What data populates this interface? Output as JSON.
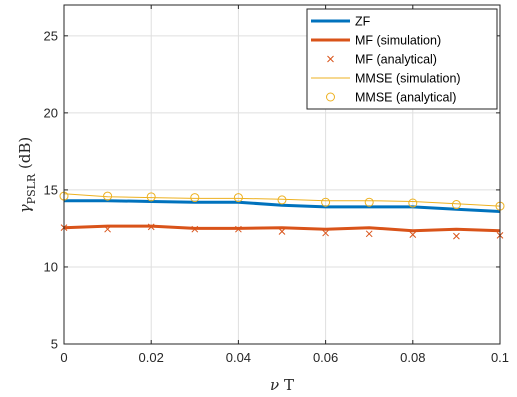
{
  "chart_data": {
    "type": "line",
    "x": [
      0,
      0.01,
      0.02,
      0.03,
      0.04,
      0.05,
      0.06,
      0.07,
      0.08,
      0.09,
      0.1
    ],
    "xlim": [
      0,
      0.1
    ],
    "ylim": [
      5,
      27
    ],
    "xticks": [
      0,
      0.02,
      0.04,
      0.06,
      0.08,
      0.1
    ],
    "xtick_labels": [
      "0",
      "0.02",
      "0.04",
      "0.06",
      "0.08",
      "0.1"
    ],
    "yticks": [
      5,
      10,
      15,
      20,
      25
    ],
    "ytick_labels": [
      "5",
      "10",
      "15",
      "20",
      "25"
    ],
    "xlabel_symbol": "ν",
    "xlabel_rest": " T",
    "ylabel_symbol": "γ",
    "ylabel_sub": "PSLR",
    "ylabel_rest": " (dB)",
    "grid": true,
    "legend_position": "top-right",
    "series": [
      {
        "name": "ZF",
        "style": "line",
        "color": "#0072BD",
        "width": 3,
        "values": [
          14.3,
          14.3,
          14.25,
          14.2,
          14.2,
          14.0,
          13.9,
          13.9,
          13.9,
          13.75,
          13.6
        ]
      },
      {
        "name": "MF (simulation)",
        "style": "line",
        "color": "#D95319",
        "width": 3,
        "values": [
          12.55,
          12.65,
          12.65,
          12.5,
          12.5,
          12.55,
          12.45,
          12.55,
          12.35,
          12.45,
          12.35
        ]
      },
      {
        "name": "MF (analytical)",
        "style": "x",
        "color": "#D95319",
        "values": [
          12.55,
          12.45,
          12.6,
          12.45,
          12.45,
          12.3,
          12.2,
          12.15,
          12.1,
          12.0,
          12.05
        ]
      },
      {
        "name": "MMSE (simulation)",
        "style": "line",
        "color": "#EDB120",
        "width": 1,
        "values": [
          14.75,
          14.55,
          14.5,
          14.45,
          14.45,
          14.4,
          14.3,
          14.3,
          14.25,
          14.1,
          13.95
        ]
      },
      {
        "name": "MMSE (analytical)",
        "style": "o",
        "color": "#EDB120",
        "values": [
          14.6,
          14.6,
          14.55,
          14.5,
          14.5,
          14.35,
          14.2,
          14.2,
          14.15,
          14.05,
          13.95
        ]
      }
    ]
  }
}
